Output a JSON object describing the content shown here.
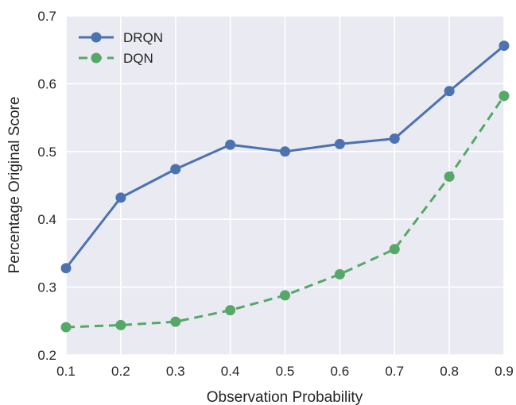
{
  "chart_data": {
    "type": "line",
    "title": "",
    "xlabel": "Observation Probability",
    "ylabel": "Percentage Original Score",
    "x": [
      0.1,
      0.2,
      0.3,
      0.4,
      0.5,
      0.6,
      0.7,
      0.8,
      0.9
    ],
    "xlim": [
      0.1,
      0.9
    ],
    "ylim": [
      0.2,
      0.7
    ],
    "xticks": [
      "0.1",
      "0.2",
      "0.3",
      "0.4",
      "0.5",
      "0.6",
      "0.7",
      "0.8",
      "0.9"
    ],
    "yticks": [
      "0.2",
      "0.3",
      "0.4",
      "0.5",
      "0.6",
      "0.7"
    ],
    "grid": true,
    "legend_position": "top-left",
    "background_color": "#eaeaf2",
    "series": [
      {
        "name": "DRQN",
        "color": "#4c72b0",
        "line_style": "solid",
        "marker": "circle",
        "values": [
          0.328,
          0.432,
          0.474,
          0.51,
          0.5,
          0.511,
          0.519,
          0.589,
          0.656
        ]
      },
      {
        "name": "DQN",
        "color": "#55a868",
        "line_style": "dashed",
        "marker": "circle",
        "values": [
          0.241,
          0.244,
          0.249,
          0.266,
          0.288,
          0.319,
          0.356,
          0.463,
          0.582
        ]
      }
    ]
  }
}
